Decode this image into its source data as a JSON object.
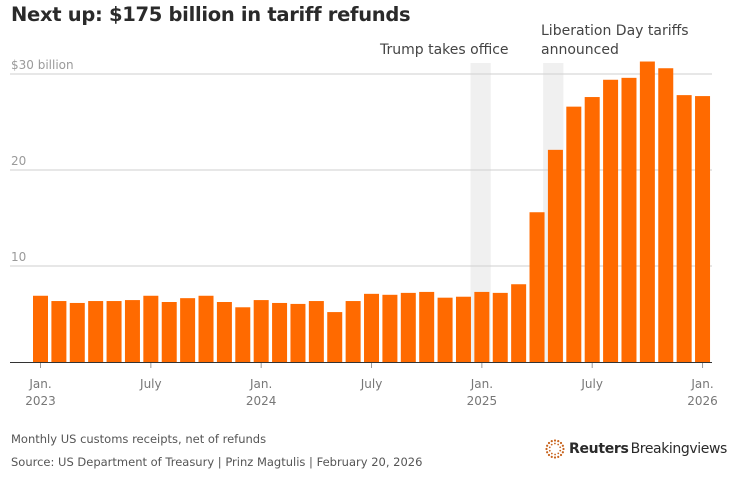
{
  "header": {
    "title": "Next up: $175 billion in tariff refunds"
  },
  "footer": {
    "note": "Monthly US customs receipts, net of refunds",
    "source": "Source: US Department of Treasury | Prinz Magtulis | February 20, 2026",
    "brand_bold": "Reuters",
    "brand_light": "Breakingviews"
  },
  "colors": {
    "bar": "#ff6a00",
    "shade": "#f0f0f0",
    "grid": "#cfcfcf",
    "axis": "#333333",
    "brand_logo": "#c8641e"
  },
  "chart_data": {
    "type": "bar",
    "title": "Next up: $175 billion in tariff refunds",
    "subtitle": "Monthly US customs receipts, net of refunds",
    "xlabel": "",
    "ylabel": "$ billion",
    "ylim": [
      0,
      30
    ],
    "yticks": [
      {
        "value": 10,
        "label": "10"
      },
      {
        "value": 20,
        "label": "20"
      },
      {
        "value": 30,
        "label": "$30 billion"
      }
    ],
    "grid": true,
    "categories": [
      "2023-01",
      "2023-02",
      "2023-03",
      "2023-04",
      "2023-05",
      "2023-06",
      "2023-07",
      "2023-08",
      "2023-09",
      "2023-10",
      "2023-11",
      "2023-12",
      "2024-01",
      "2024-02",
      "2024-03",
      "2024-04",
      "2024-05",
      "2024-06",
      "2024-07",
      "2024-08",
      "2024-09",
      "2024-10",
      "2024-11",
      "2024-12",
      "2025-01",
      "2025-02",
      "2025-03",
      "2025-04",
      "2025-05",
      "2025-06",
      "2025-07",
      "2025-08",
      "2025-09",
      "2025-10",
      "2025-11",
      "2025-12",
      "2026-01"
    ],
    "values": [
      6.9,
      6.35,
      6.15,
      6.35,
      6.35,
      6.45,
      6.9,
      6.25,
      6.65,
      6.9,
      6.25,
      5.7,
      6.45,
      6.15,
      6.05,
      6.35,
      5.2,
      6.35,
      7.1,
      7.0,
      7.2,
      7.3,
      6.7,
      6.8,
      7.3,
      7.2,
      8.1,
      15.6,
      22.1,
      26.6,
      27.6,
      29.4,
      29.6,
      31.3,
      30.6,
      27.8,
      27.7
    ],
    "xticks": [
      {
        "index": 0,
        "line1": "Jan.",
        "line2": "2023"
      },
      {
        "index": 6,
        "line1": "July",
        "line2": ""
      },
      {
        "index": 12,
        "line1": "Jan.",
        "line2": "2024"
      },
      {
        "index": 18,
        "line1": "July",
        "line2": ""
      },
      {
        "index": 24,
        "line1": "Jan.",
        "line2": "2025"
      },
      {
        "index": 30,
        "line1": "July",
        "line2": ""
      },
      {
        "index": 36,
        "line1": "Jan.",
        "line2": "2026"
      }
    ],
    "annotations": [
      {
        "label_lines": [
          "Trump takes office"
        ],
        "date": "2025-01-20",
        "shade_from_index": 23.9,
        "shade_to_index": 25.0
      },
      {
        "label_lines": [
          "Liberation Day tariffs",
          "announced"
        ],
        "date": "2025-04-02",
        "shade_from_index": 27.85,
        "shade_to_index": 28.95
      }
    ],
    "legend": "none"
  }
}
